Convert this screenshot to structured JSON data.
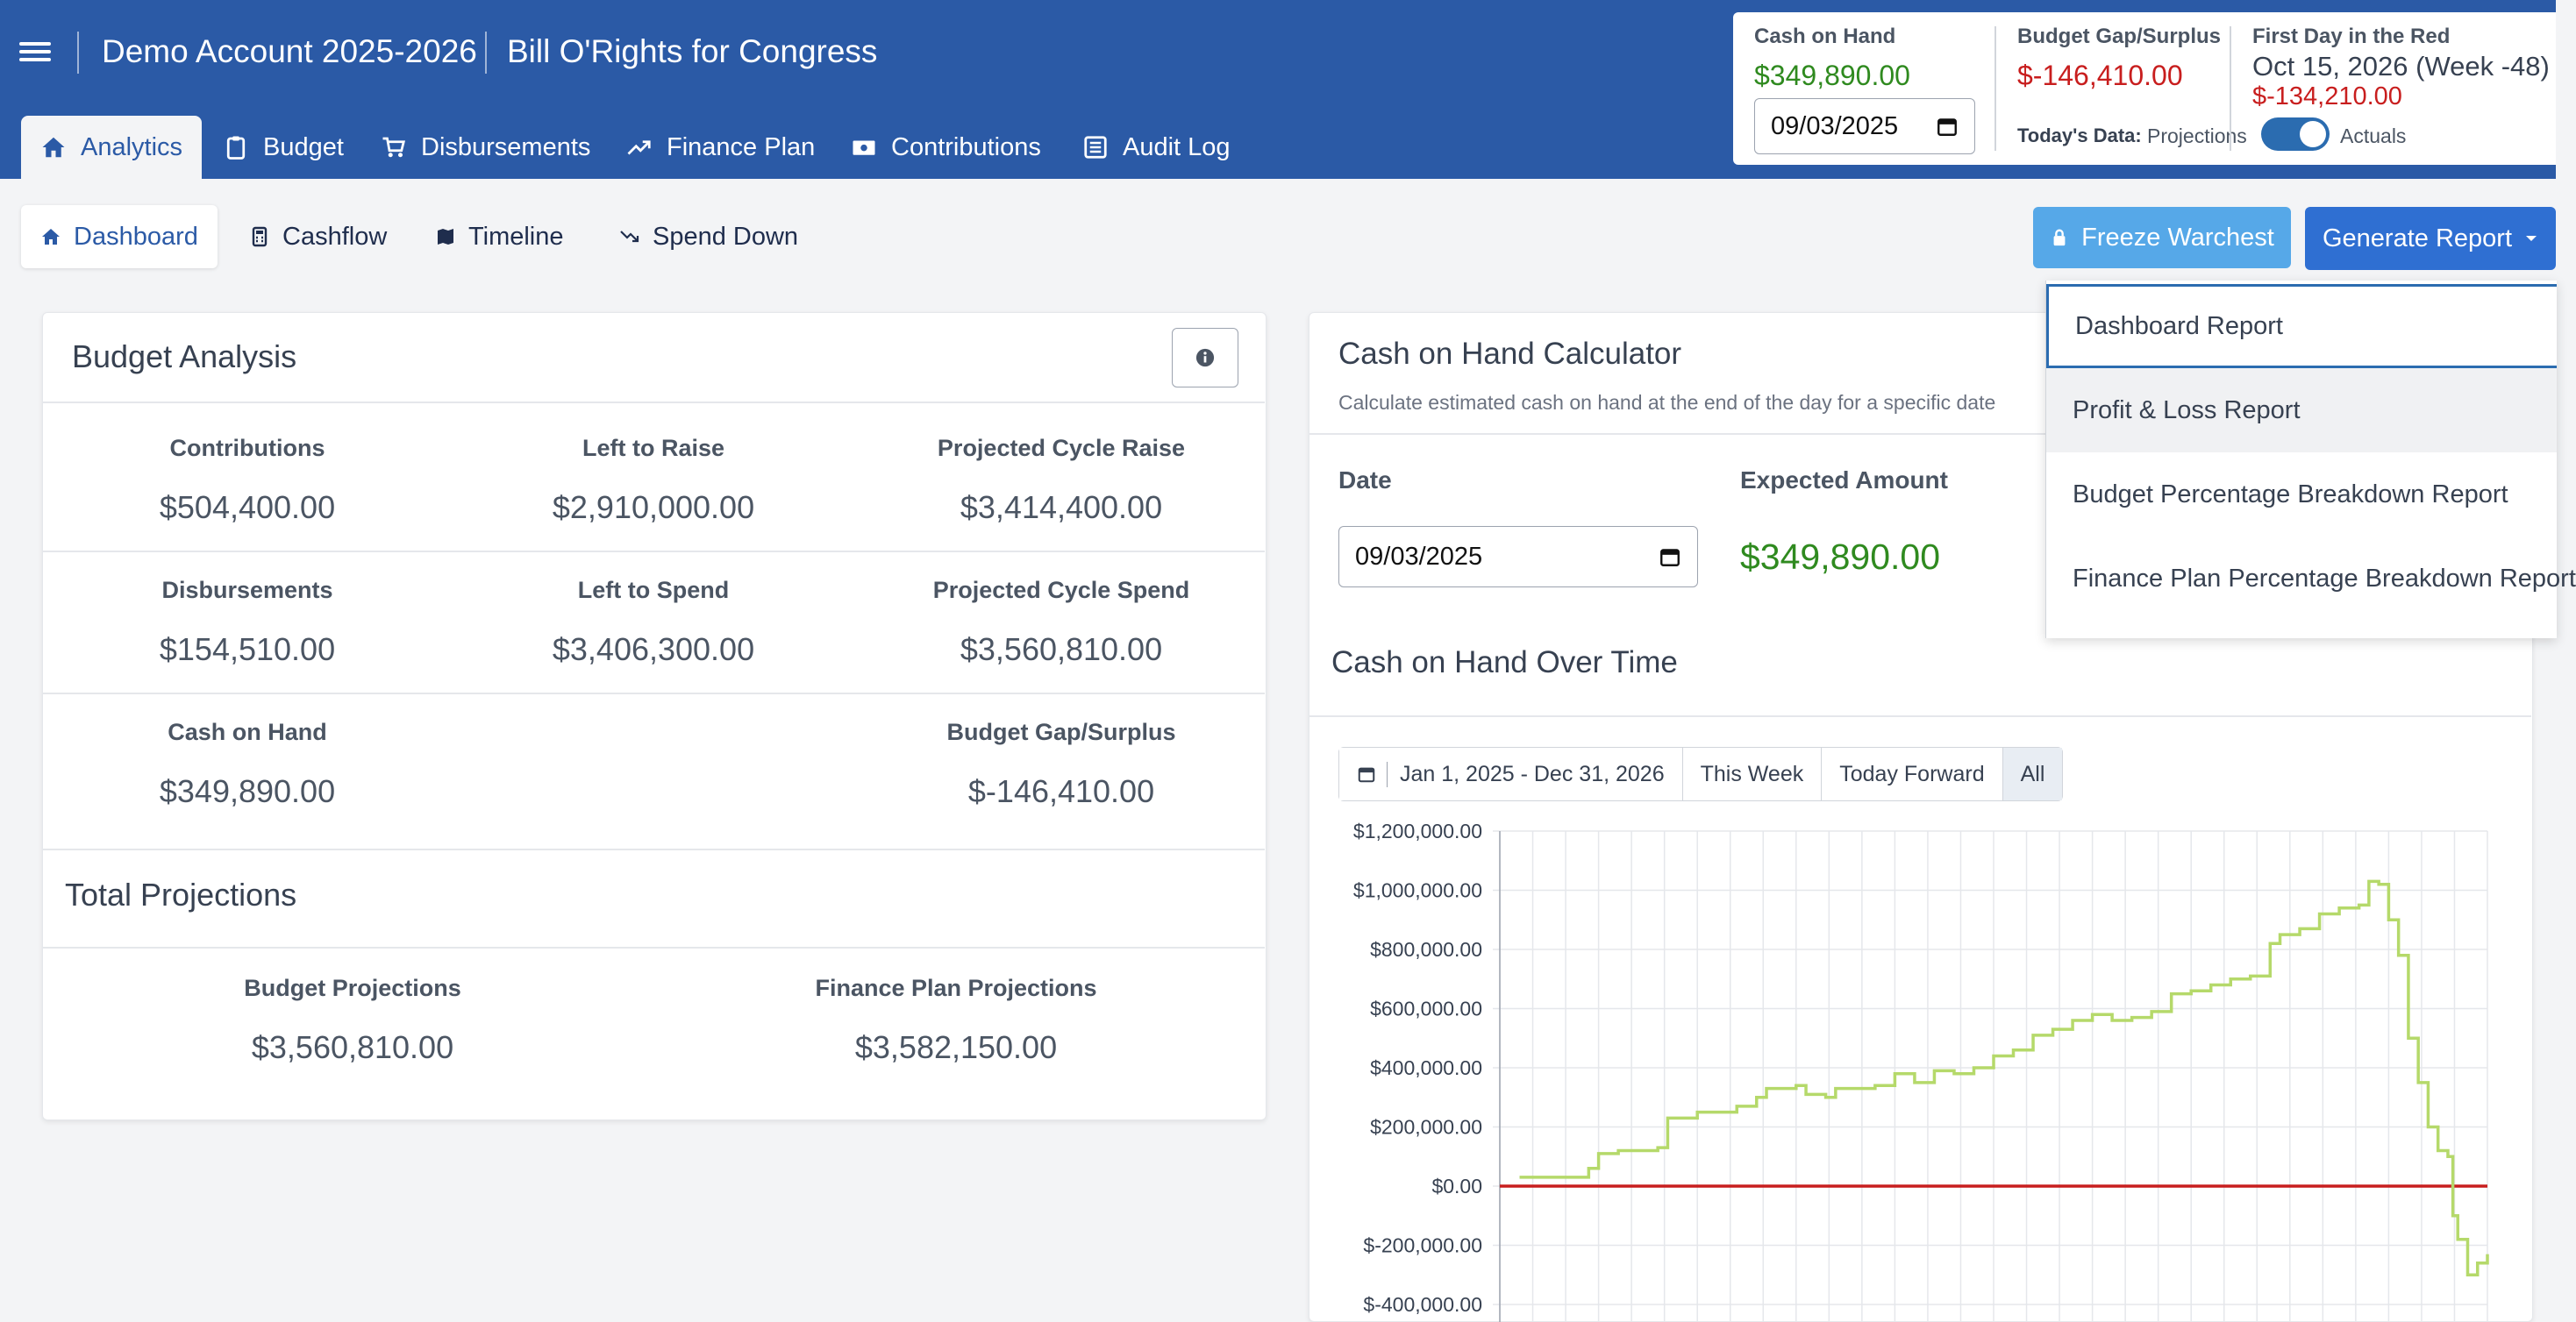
{
  "header": {
    "account": "Demo Account 2025-2026",
    "campaign": "Bill O'Rights for Congress",
    "tabs": [
      {
        "label": "Analytics",
        "icon": "home-icon"
      },
      {
        "label": "Budget",
        "icon": "clipboard-icon"
      },
      {
        "label": "Disbursements",
        "icon": "cart-icon"
      },
      {
        "label": "Finance Plan",
        "icon": "trend-up-icon"
      },
      {
        "label": "Contributions",
        "icon": "cash-icon"
      },
      {
        "label": "Audit Log",
        "icon": "list-icon"
      }
    ]
  },
  "summary": {
    "cash_label": "Cash on Hand",
    "cash_value": "$349,890.00",
    "date_value": "09/03/2025",
    "gap_label": "Budget Gap/Surplus",
    "gap_value": "$-146,410.00",
    "todays_data_label": "Today's Data:",
    "projections_label": "Projections",
    "actuals_label": "Actuals",
    "red_label": "First Day in the Red",
    "red_date": "Oct 15, 2026 (Week -48)",
    "red_value": "$-134,210.00"
  },
  "subtabs": [
    {
      "label": "Dashboard",
      "icon": "home-icon"
    },
    {
      "label": "Cashflow",
      "icon": "calculator-icon"
    },
    {
      "label": "Timeline",
      "icon": "map-icon"
    },
    {
      "label": "Spend Down",
      "icon": "trend-down-icon"
    }
  ],
  "actions": {
    "freeze_label": "Freeze Warchest",
    "report_label": "Generate Report"
  },
  "report_menu": [
    "Dashboard Report",
    "Profit & Loss Report",
    "Budget Percentage Breakdown Report",
    "Finance Plan Percentage Breakdown Report"
  ],
  "budget_analysis": {
    "title": "Budget Analysis",
    "rows": [
      [
        {
          "label": "Contributions",
          "value": "$504,400.00"
        },
        {
          "label": "Left to Raise",
          "value": "$2,910,000.00"
        },
        {
          "label": "Projected Cycle Raise",
          "value": "$3,414,400.00"
        }
      ],
      [
        {
          "label": "Disbursements",
          "value": "$154,510.00"
        },
        {
          "label": "Left to Spend",
          "value": "$3,406,300.00"
        },
        {
          "label": "Projected Cycle Spend",
          "value": "$3,560,810.00"
        }
      ]
    ],
    "cash_label": "Cash on Hand",
    "cash_value": "$349,890.00",
    "gap_label": "Budget Gap/Surplus",
    "gap_value": "$-146,410.00",
    "total_title": "Total Projections",
    "budget_proj_label": "Budget Projections",
    "budget_proj_value": "$3,560,810.00",
    "finance_proj_label": "Finance Plan Projections",
    "finance_proj_value": "$3,582,150.00"
  },
  "calculator": {
    "title": "Cash on Hand Calculator",
    "subtitle": "Calculate estimated cash on hand at the end of the day for a specific date",
    "date_label": "Date",
    "date_value": "09/03/2025",
    "expected_label": "Expected Amount",
    "expected_value": "$349,890.00"
  },
  "over_time": {
    "title": "Cash on Hand Over Time",
    "range_label": "Jan 1, 2025 - Dec 31, 2026",
    "buttons": [
      "This Week",
      "Today Forward",
      "All"
    ]
  },
  "colors": {
    "header": "#2b5aa6",
    "line": "#b5d96a",
    "zero_line": "#c81e1e"
  },
  "chart_data": {
    "type": "line",
    "x_label_note": "",
    "ylim": [
      -400000,
      1200000
    ],
    "y_ticks": [
      "$1,200,000.00",
      "$1,000,000.00",
      "$800,000.00",
      "$600,000.00",
      "$400,000.00",
      "$200,000.00",
      "$0.00",
      "$-200,000.00",
      "$-400,000.00"
    ],
    "y_tick_values": [
      1200000,
      1000000,
      800000,
      600000,
      400000,
      200000,
      0,
      -200000,
      -400000
    ],
    "grid": true,
    "series": [
      {
        "values": [
          [
            0.02,
            30000
          ],
          [
            0.08,
            30000
          ],
          [
            0.09,
            60000
          ],
          [
            0.1,
            110000
          ],
          [
            0.12,
            120000
          ],
          [
            0.16,
            130000
          ],
          [
            0.17,
            230000
          ],
          [
            0.2,
            250000
          ],
          [
            0.24,
            270000
          ],
          [
            0.26,
            300000
          ],
          [
            0.27,
            330000
          ],
          [
            0.3,
            340000
          ],
          [
            0.31,
            310000
          ],
          [
            0.33,
            300000
          ],
          [
            0.34,
            330000
          ],
          [
            0.38,
            340000
          ],
          [
            0.4,
            380000
          ],
          [
            0.42,
            350000
          ],
          [
            0.44,
            390000
          ],
          [
            0.46,
            380000
          ],
          [
            0.48,
            400000
          ],
          [
            0.5,
            440000
          ],
          [
            0.52,
            460000
          ],
          [
            0.54,
            510000
          ],
          [
            0.56,
            530000
          ],
          [
            0.58,
            560000
          ],
          [
            0.6,
            580000
          ],
          [
            0.62,
            560000
          ],
          [
            0.64,
            570000
          ],
          [
            0.66,
            590000
          ],
          [
            0.68,
            650000
          ],
          [
            0.7,
            660000
          ],
          [
            0.72,
            680000
          ],
          [
            0.74,
            700000
          ],
          [
            0.76,
            710000
          ],
          [
            0.78,
            820000
          ],
          [
            0.79,
            850000
          ],
          [
            0.81,
            870000
          ],
          [
            0.83,
            920000
          ],
          [
            0.85,
            940000
          ],
          [
            0.87,
            950000
          ],
          [
            0.88,
            1030000
          ],
          [
            0.89,
            1020000
          ],
          [
            0.9,
            900000
          ],
          [
            0.91,
            780000
          ],
          [
            0.92,
            500000
          ],
          [
            0.93,
            350000
          ],
          [
            0.94,
            200000
          ],
          [
            0.95,
            120000
          ],
          [
            0.96,
            100000
          ],
          [
            0.965,
            -100000
          ],
          [
            0.97,
            -180000
          ],
          [
            0.98,
            -300000
          ],
          [
            0.99,
            -260000
          ],
          [
            1.0,
            -230000
          ]
        ],
        "note": "x fraction of date range Jan 2025 - Dec 2026"
      }
    ],
    "zero_line": 0
  }
}
